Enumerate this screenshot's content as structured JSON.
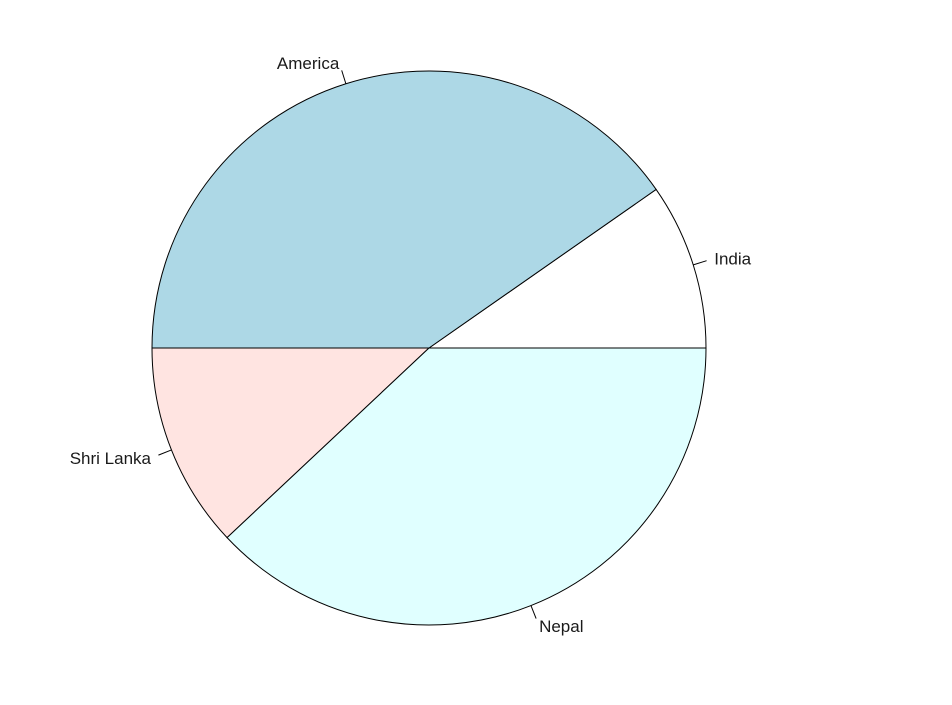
{
  "chart_data": {
    "type": "pie",
    "labels": [
      "India",
      "America",
      "Shri Lanka",
      "Nepal"
    ],
    "values": [
      0.097,
      0.403,
      0.12,
      0.38
    ],
    "colors": [
      "#FFFFFF",
      "#ADD8E6",
      "#FFE4E1",
      "#E0FFFF"
    ],
    "start_angle_degrees": 0,
    "direction": "counterclockwise",
    "title": "",
    "legend": "none"
  }
}
